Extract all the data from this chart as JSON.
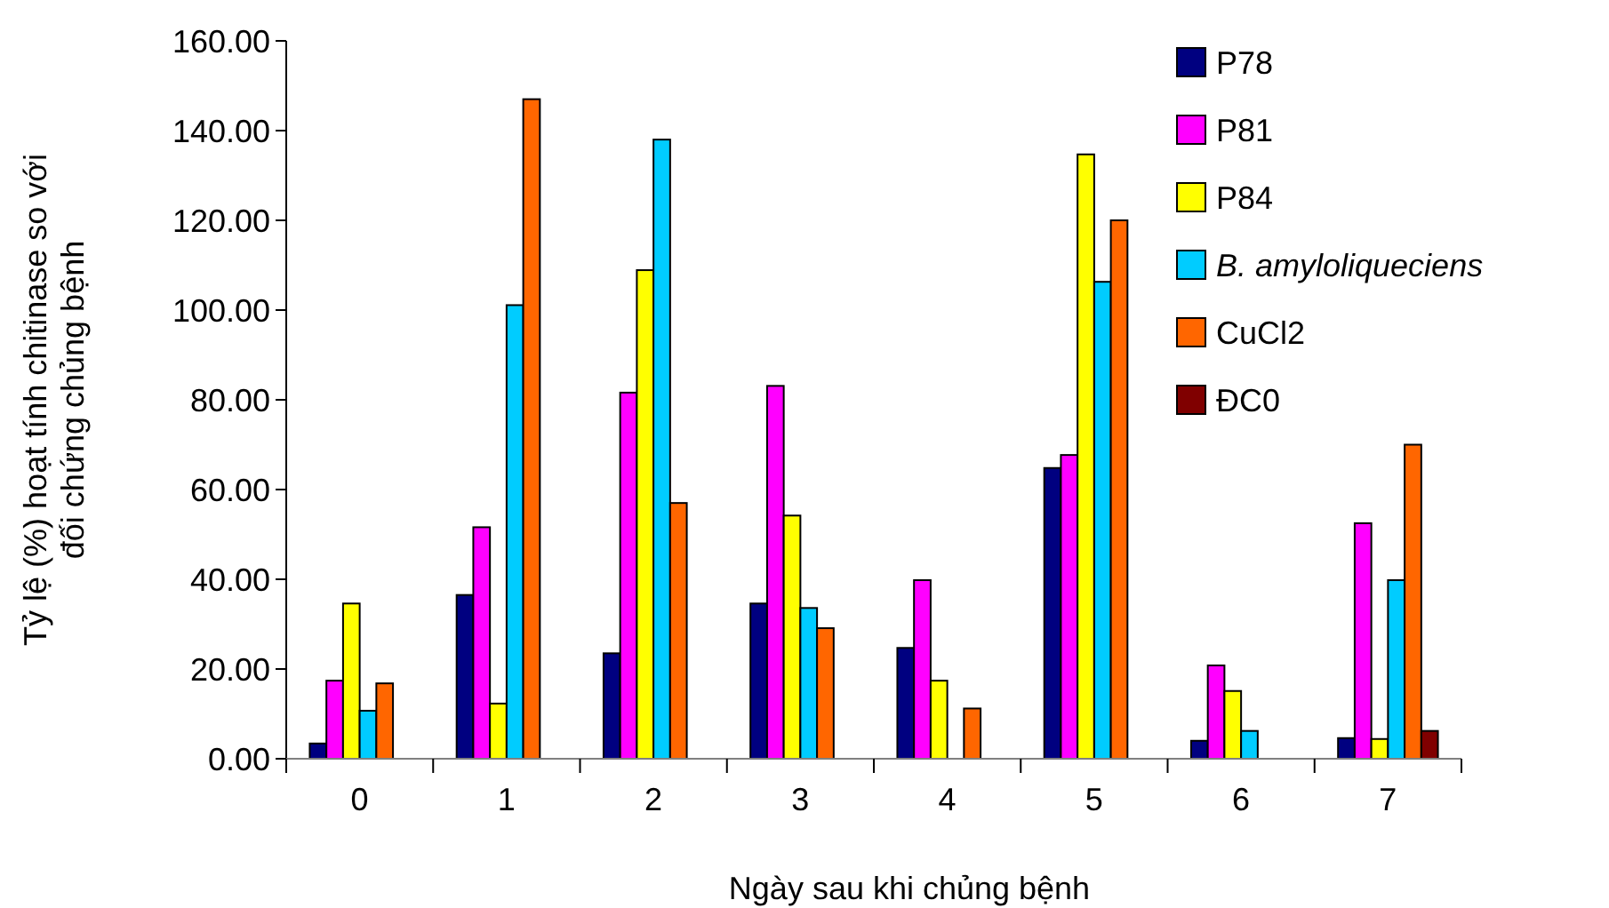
{
  "chart_data": {
    "type": "bar",
    "xlabel": "Ngày sau khi chủng bệnh",
    "ylabel": "Tỷ lệ (%) hoạt tính chitinase so với\nđối chứng chủng bệnh",
    "categories": [
      "0",
      "1",
      "2",
      "3",
      "4",
      "5",
      "6",
      "7"
    ],
    "ylim": [
      0,
      160
    ],
    "yticks": [
      {
        "value": 0,
        "label": "0.00"
      },
      {
        "value": 20,
        "label": "20.00"
      },
      {
        "value": 40,
        "label": "40.00"
      },
      {
        "value": 60,
        "label": "60.00"
      },
      {
        "value": 80,
        "label": "80.00"
      },
      {
        "value": 100,
        "label": "100.00"
      },
      {
        "value": 120,
        "label": "120.00"
      },
      {
        "value": 140,
        "label": "140.00"
      },
      {
        "value": 160,
        "label": "160.00"
      }
    ],
    "grid": false,
    "legend": "top right",
    "series": [
      {
        "name": "P78",
        "color": "#000080",
        "values": [
          3.4,
          36.5,
          23.5,
          34.6,
          24.7,
          64.8,
          4.0,
          4.6
        ]
      },
      {
        "name": "P81",
        "color": "#ff00ff",
        "values": [
          17.4,
          51.6,
          81.6,
          83.1,
          39.8,
          67.7,
          20.8,
          52.5
        ]
      },
      {
        "name": "P84",
        "color": "#ffff00",
        "values": [
          34.6,
          12.3,
          108.9,
          54.2,
          17.4,
          134.7,
          15.1,
          4.4
        ]
      },
      {
        "name": "B. amyloliqueciens",
        "color": "#00ccff",
        "values": [
          10.7,
          101.1,
          138,
          33.6,
          null,
          106.3,
          6.2,
          39.8
        ]
      },
      {
        "name": "CuCl2",
        "color": "#ff6600",
        "values": [
          16.8,
          147,
          57,
          29.1,
          11.2,
          120,
          null,
          70
        ]
      },
      {
        "name": "ĐC0",
        "color": "#800000",
        "values": [
          null,
          null,
          null,
          null,
          null,
          null,
          null,
          6.2
        ]
      }
    ]
  }
}
